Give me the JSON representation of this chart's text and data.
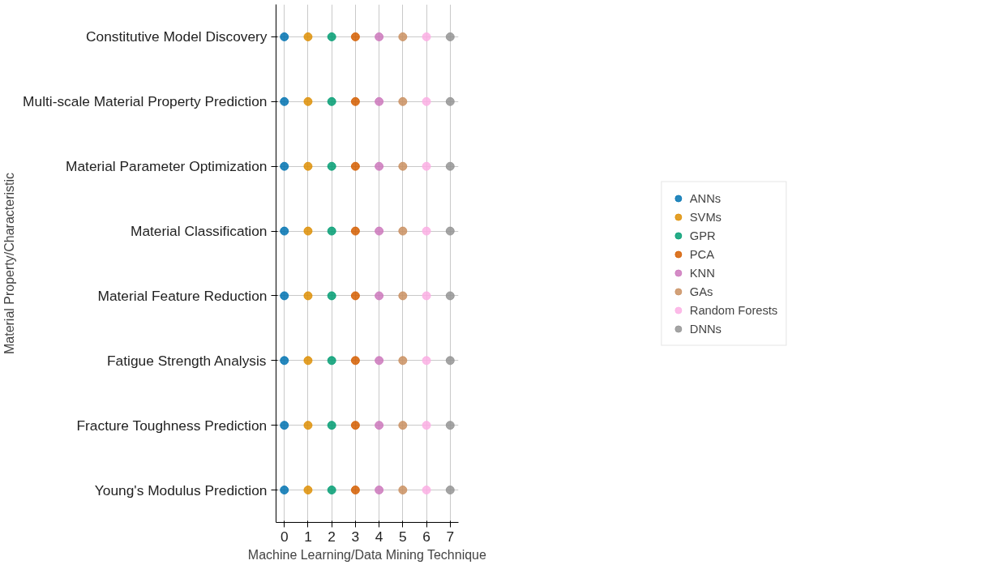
{
  "chart_data": {
    "type": "scatter",
    "orientation": "horizontal",
    "xlabel": "Machine Learning/Data Mining Technique",
    "ylabel": "Material Property/Characteristic",
    "categories": [
      "Constitutive Model Discovery",
      "Multi-scale Material Property Prediction",
      "Material Parameter Optimization",
      "Material Classification",
      "Material Feature Reduction",
      "Fatigue Strength Analysis",
      "Fracture Toughness Prediction",
      "Young's Modulus Prediction"
    ],
    "series": [
      {
        "name": "ANNs",
        "color": "#0173b2",
        "values": [
          0,
          0,
          0,
          0,
          0,
          0,
          0,
          0
        ]
      },
      {
        "name": "SVMs",
        "color": "#de8f05",
        "values": [
          1,
          1,
          1,
          1,
          1,
          1,
          1,
          1
        ]
      },
      {
        "name": "GPR",
        "color": "#029e73",
        "values": [
          2,
          2,
          2,
          2,
          2,
          2,
          2,
          2
        ]
      },
      {
        "name": "PCA",
        "color": "#d55e00",
        "values": [
          3,
          3,
          3,
          3,
          3,
          3,
          3,
          3
        ]
      },
      {
        "name": "KNN",
        "color": "#cc78bc",
        "values": [
          4,
          4,
          4,
          4,
          4,
          4,
          4,
          4
        ]
      },
      {
        "name": "GAs",
        "color": "#ca9161",
        "values": [
          5,
          5,
          5,
          5,
          5,
          5,
          5,
          5
        ]
      },
      {
        "name": "Random Forests",
        "color": "#fbafe4",
        "values": [
          6,
          6,
          6,
          6,
          6,
          6,
          6,
          6
        ]
      },
      {
        "name": "DNNs",
        "color": "#949494",
        "values": [
          7,
          7,
          7,
          7,
          7,
          7,
          7,
          7
        ]
      }
    ],
    "xlim": [
      -0.35,
      7.35
    ],
    "xticks": [
      0,
      1,
      2,
      3,
      4,
      5,
      6,
      7
    ],
    "grid": true,
    "legend": "right",
    "marker": "circle"
  }
}
